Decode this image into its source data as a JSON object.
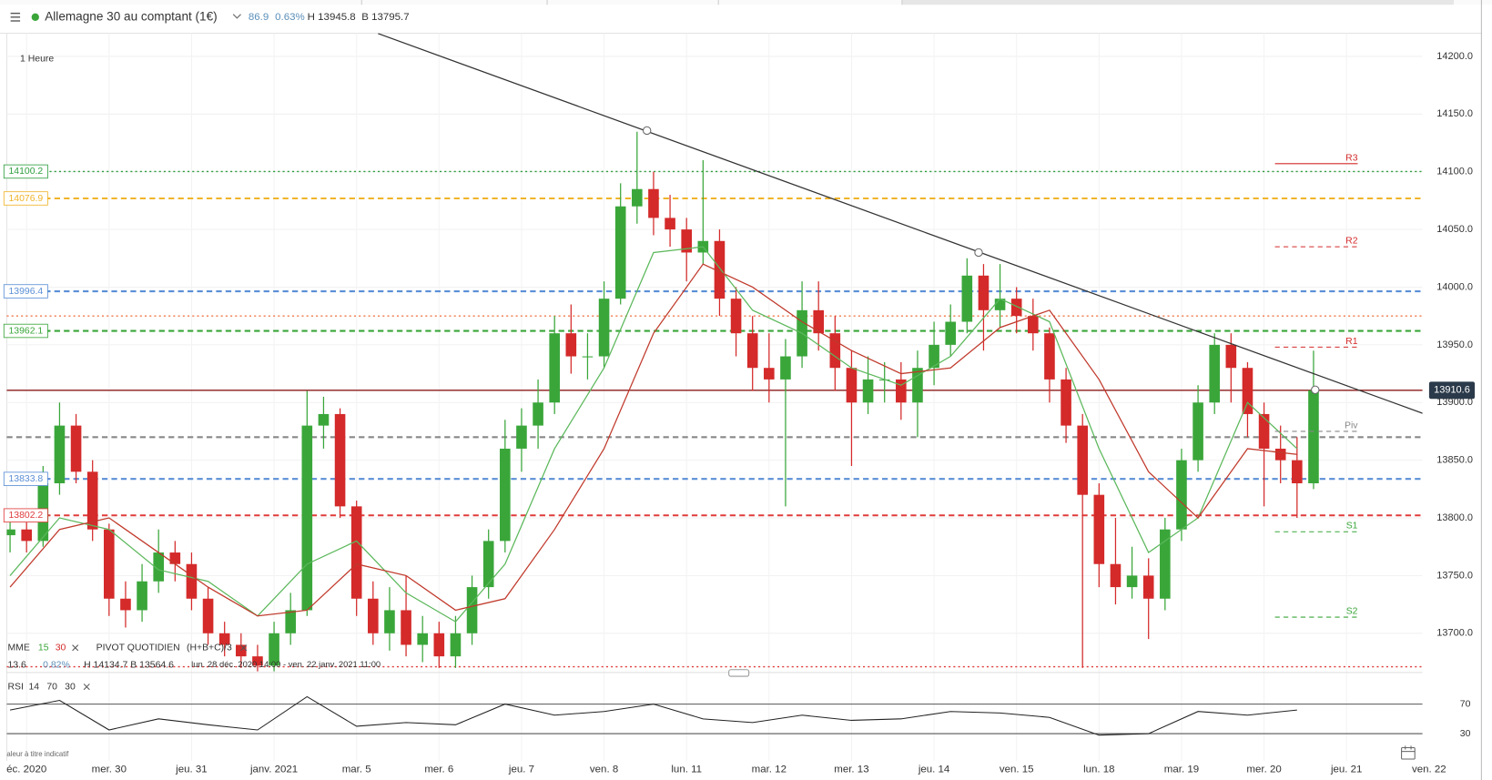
{
  "header": {
    "instrument": "Allemagne 30 au comptant (1€)",
    "change": "86.9",
    "change_pct": "0.63%",
    "high": "H 13945.8",
    "low": "B 13795.7"
  },
  "chart_data": {
    "type": "candlestick",
    "timeframe": "1 Heure",
    "xlim": [
      -1.2,
      84.6
    ],
    "ylim": [
      13666,
      14220
    ],
    "xticks": [
      {
        "value": 0,
        "label": "éc. 2020"
      },
      {
        "value": 5,
        "label": "mer. 30"
      },
      {
        "value": 10,
        "label": "jeu. 31"
      },
      {
        "value": 15,
        "label": "janv. 2021"
      },
      {
        "value": 20,
        "label": "mar. 5"
      },
      {
        "value": 25,
        "label": "mer. 6"
      },
      {
        "value": 30,
        "label": "jeu. 7"
      },
      {
        "value": 35,
        "label": "ven. 8"
      },
      {
        "value": 40,
        "label": "lun. 11"
      },
      {
        "value": 45,
        "label": "mar. 12"
      },
      {
        "value": 50,
        "label": "mer. 13"
      },
      {
        "value": 55,
        "label": "jeu. 14"
      },
      {
        "value": 60,
        "label": "ven. 15"
      },
      {
        "value": 65,
        "label": "lun. 18"
      },
      {
        "value": 70,
        "label": "mar. 19"
      },
      {
        "value": 75,
        "label": "mer. 20"
      },
      {
        "value": 80,
        "label": "jeu. 21"
      },
      {
        "value": 85,
        "label": "ven. 22"
      }
    ],
    "yticks": [
      {
        "value": 13700,
        "label": "13700.0"
      },
      {
        "value": 13750,
        "label": "13750.0"
      },
      {
        "value": 13800,
        "label": "13800.0"
      },
      {
        "value": 13850,
        "label": "13850.0"
      },
      {
        "value": 13900,
        "label": "13900.0"
      },
      {
        "value": 13950,
        "label": "13950.0"
      },
      {
        "value": 14000,
        "label": "14000.0"
      },
      {
        "value": 14050,
        "label": "14050.0"
      },
      {
        "value": 14100,
        "label": "14100.0"
      },
      {
        "value": 14150,
        "label": "14150.0"
      },
      {
        "value": 14200,
        "label": "14200.0"
      }
    ],
    "grid": true,
    "up_color": "#3aa63a",
    "down_color": "#d42a2a",
    "candles": {
      "x": [
        -1,
        0,
        1,
        2,
        3,
        4,
        5,
        6,
        7,
        8,
        9,
        10,
        11,
        12,
        13,
        14,
        15,
        16,
        17,
        18,
        19,
        20,
        21,
        22,
        23,
        24,
        25,
        26,
        27,
        28,
        29,
        30,
        31,
        32,
        33,
        34,
        35,
        36,
        37,
        38,
        39,
        40,
        41,
        42,
        43,
        44,
        45,
        46,
        47,
        48,
        49,
        50,
        51,
        52,
        53,
        54,
        55,
        56,
        57,
        58,
        59,
        60,
        61,
        62,
        63,
        64,
        65,
        66,
        67,
        68,
        69,
        70,
        71,
        72,
        73,
        74,
        75,
        76,
        77,
        78
      ],
      "open": [
        13785,
        13790,
        13780,
        13830,
        13880,
        13840,
        13790,
        13730,
        13720,
        13745,
        13770,
        13760,
        13730,
        13700,
        13690,
        13680,
        13672,
        13700,
        13720,
        13880,
        13890,
        13810,
        13730,
        13700,
        13720,
        13690,
        13700,
        13680,
        13700,
        13740,
        13780,
        13860,
        13880,
        13900,
        13960,
        13940,
        13940,
        13990,
        14070,
        14085,
        14060,
        14050,
        14030,
        14040,
        13990,
        13960,
        13930,
        13920,
        13940,
        13980,
        13960,
        13930,
        13900,
        13920,
        13920,
        13900,
        13930,
        13950,
        13970,
        14010,
        13980,
        13990,
        13975,
        13960,
        13920,
        13880,
        13820,
        13760,
        13740,
        13750,
        13730,
        13790,
        13850,
        13900,
        13950,
        13930,
        13890,
        13860,
        13850,
        13830
      ],
      "high": [
        13800,
        13800,
        13845,
        13900,
        13890,
        13850,
        13795,
        13745,
        13760,
        13790,
        13780,
        13770,
        13740,
        13710,
        13700,
        13690,
        13710,
        13735,
        13910,
        13905,
        13895,
        13815,
        13745,
        13740,
        13750,
        13715,
        13710,
        13715,
        13750,
        13790,
        13885,
        13895,
        13920,
        13975,
        13985,
        13960,
        14005,
        14090,
        14134.7,
        14100,
        14080,
        14060,
        14110,
        14050,
        14000,
        13975,
        13960,
        13955,
        14005,
        14005,
        13975,
        13945,
        13940,
        13935,
        13935,
        13945,
        13970,
        13985,
        14025,
        14020,
        14020,
        14000,
        13990,
        13965,
        13930,
        13890,
        13830,
        13800,
        13775,
        13765,
        13800,
        13860,
        13915,
        13960,
        13960,
        13935,
        13900,
        13880,
        13870,
        13945
      ],
      "low": [
        13770,
        13770,
        13775,
        13820,
        13830,
        13780,
        13715,
        13705,
        13710,
        13735,
        13745,
        13720,
        13690,
        13680,
        13670,
        13667,
        13667,
        13690,
        13715,
        13860,
        13800,
        13715,
        13690,
        13685,
        13680,
        13675,
        13670,
        13670,
        13690,
        13730,
        13770,
        13840,
        13860,
        13890,
        13925,
        13920,
        13930,
        13985,
        14055,
        14045,
        14035,
        14005,
        14020,
        13975,
        13940,
        13910,
        13900,
        13810,
        13930,
        13945,
        13910,
        13845,
        13890,
        13900,
        13885,
        13870,
        13915,
        13940,
        13960,
        13945,
        13965,
        13960,
        13945,
        13900,
        13865,
        13670,
        13740,
        13725,
        13730,
        13695,
        13720,
        13780,
        13840,
        13890,
        13900,
        13870,
        13810,
        13830,
        13800,
        13825
      ],
      "close": [
        13790,
        13780,
        13830,
        13880,
        13840,
        13790,
        13730,
        13720,
        13745,
        13770,
        13760,
        13730,
        13700,
        13690,
        13680,
        13672,
        13700,
        13720,
        13880,
        13890,
        13810,
        13730,
        13700,
        13720,
        13690,
        13700,
        13680,
        13700,
        13740,
        13780,
        13860,
        13880,
        13900,
        13960,
        13940,
        13940,
        13990,
        14070,
        14085,
        14060,
        14050,
        14030,
        14040,
        13990,
        13960,
        13930,
        13920,
        13940,
        13980,
        13960,
        13930,
        13900,
        13920,
        13920,
        13900,
        13930,
        13950,
        13970,
        14010,
        13980,
        13990,
        13975,
        13960,
        13920,
        13880,
        13820,
        13760,
        13740,
        13750,
        13730,
        13790,
        13850,
        13900,
        13950,
        13930,
        13890,
        13860,
        13850,
        13830,
        13910.6
      ]
    },
    "ma": {
      "name": "MME",
      "x": [
        -1,
        2,
        5,
        8,
        11,
        14,
        17,
        20,
        23,
        26,
        29,
        32,
        35,
        38,
        41,
        44,
        47,
        50,
        53,
        56,
        59,
        62,
        65,
        68,
        71,
        74,
        77
      ],
      "series": [
        {
          "name": "15",
          "color": "#5cb85c",
          "values": [
            13750,
            13800,
            13790,
            13755,
            13745,
            13715,
            13760,
            13780,
            13735,
            13710,
            13760,
            13860,
            13930,
            14030,
            14035,
            13980,
            13960,
            13930,
            13915,
            13940,
            13990,
            13970,
            13860,
            13770,
            13800,
            13900,
            13860
          ]
        },
        {
          "name": "30",
          "color": "#c0392b",
          "values": [
            13740,
            13790,
            13800,
            13770,
            13740,
            13715,
            13720,
            13760,
            13750,
            13720,
            13730,
            13790,
            13860,
            13960,
            14020,
            14000,
            13970,
            13945,
            13925,
            13930,
            13965,
            13980,
            13920,
            13840,
            13800,
            13860,
            13855
          ]
        }
      ]
    },
    "pivot": {
      "name": "PIVOT QUOTIDIEN",
      "formula": "(H+B+C)/3",
      "levels": [
        {
          "name": "R3",
          "value": 14107,
          "color": "#d42a2a",
          "style": "solid"
        },
        {
          "name": "R2",
          "value": 14035,
          "color": "#d42a2a",
          "style": "dashed"
        },
        {
          "name": "R1",
          "value": 13948,
          "color": "#d42a2a",
          "style": "dashed"
        },
        {
          "name": "Piv",
          "value": 13875,
          "color": "#888888",
          "style": "dashed"
        },
        {
          "name": "S1",
          "value": 13788,
          "color": "#3aa63a",
          "style": "dashed"
        },
        {
          "name": "S2",
          "value": 13714,
          "color": "#3aa63a",
          "style": "dashed"
        }
      ]
    },
    "levels": [
      {
        "value": 14100.2,
        "label": "14100.2",
        "color": "#2e9e3e",
        "style": "dotted"
      },
      {
        "value": 14076.9,
        "label": "14076.9",
        "color": "#f0b429",
        "style": "dashed"
      },
      {
        "value": 13996.4,
        "label": "13996.4",
        "color": "#5b8fd6",
        "style": "dashed"
      },
      {
        "value": 13975,
        "color": "#f07a4a",
        "style": "dotted"
      },
      {
        "value": 13962.1,
        "label": "13962.1",
        "color": "#3aa63a",
        "style": "dashed"
      },
      {
        "value": 13910.6,
        "color": "#8b1a1a",
        "style": "solid"
      },
      {
        "value": 13870,
        "color": "#888888",
        "style": "dashed"
      },
      {
        "value": 13833.8,
        "label": "13833.8",
        "color": "#5b8fd6",
        "style": "dashed"
      },
      {
        "value": 13802.2,
        "label": "13802.2",
        "color": "#e03b3b",
        "style": "dashed"
      },
      {
        "value": 13671,
        "color": "#e03b3b",
        "style": "dotted"
      }
    ],
    "trendline": {
      "x": [
        21.3,
        88.2
      ],
      "values": [
        14219.8,
        13872
      ],
      "anchors_x": [
        37.6,
        57.7,
        78.1
      ],
      "anchors": [
        14135.7,
        14030,
        13911
      ]
    },
    "last_price": 13910.6,
    "summary": {
      "change": "13.6",
      "change_pct": "0.82%",
      "high": "H 14134.7",
      "low": "B 13564.6",
      "range": "lun. 28 déc. 2020 14:00 - ven. 22 janv. 2021 11:00"
    },
    "rsi": {
      "name": "RSI",
      "period": 14,
      "overbought": 70,
      "oversold": 30,
      "ylim": [
        -7,
        87
      ],
      "yticks": [
        30,
        70
      ],
      "x": [
        -1,
        2,
        5,
        8,
        11,
        14,
        17,
        20,
        23,
        26,
        29,
        32,
        35,
        38,
        41,
        44,
        47,
        50,
        53,
        56,
        59,
        62,
        65,
        68,
        71,
        74,
        77
      ],
      "values": [
        62,
        75,
        35,
        50,
        42,
        35,
        80,
        40,
        45,
        42,
        70,
        55,
        60,
        70,
        50,
        45,
        55,
        48,
        50,
        60,
        58,
        52,
        28,
        30,
        60,
        55,
        62
      ]
    },
    "note": "aleur à titre indicatif"
  }
}
